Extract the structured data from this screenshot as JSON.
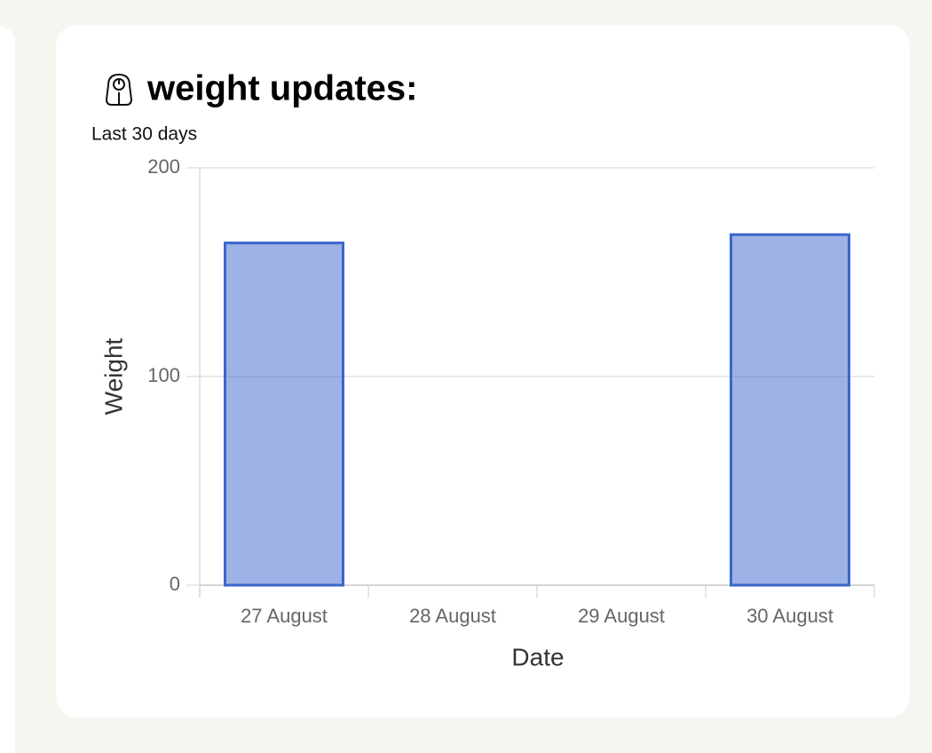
{
  "chart_data": {
    "type": "bar",
    "title": "weight updates:",
    "subtitle": "Last 30 days",
    "x_label": "Date",
    "y_label": "Weight",
    "categories": [
      "27 August",
      "28 August",
      "29 August",
      "30 August"
    ],
    "values": [
      164,
      null,
      null,
      168
    ],
    "color": "#3b66cc",
    "ylim": [
      0,
      200
    ],
    "yticks": [
      0,
      100,
      200
    ],
    "grid": true
  }
}
